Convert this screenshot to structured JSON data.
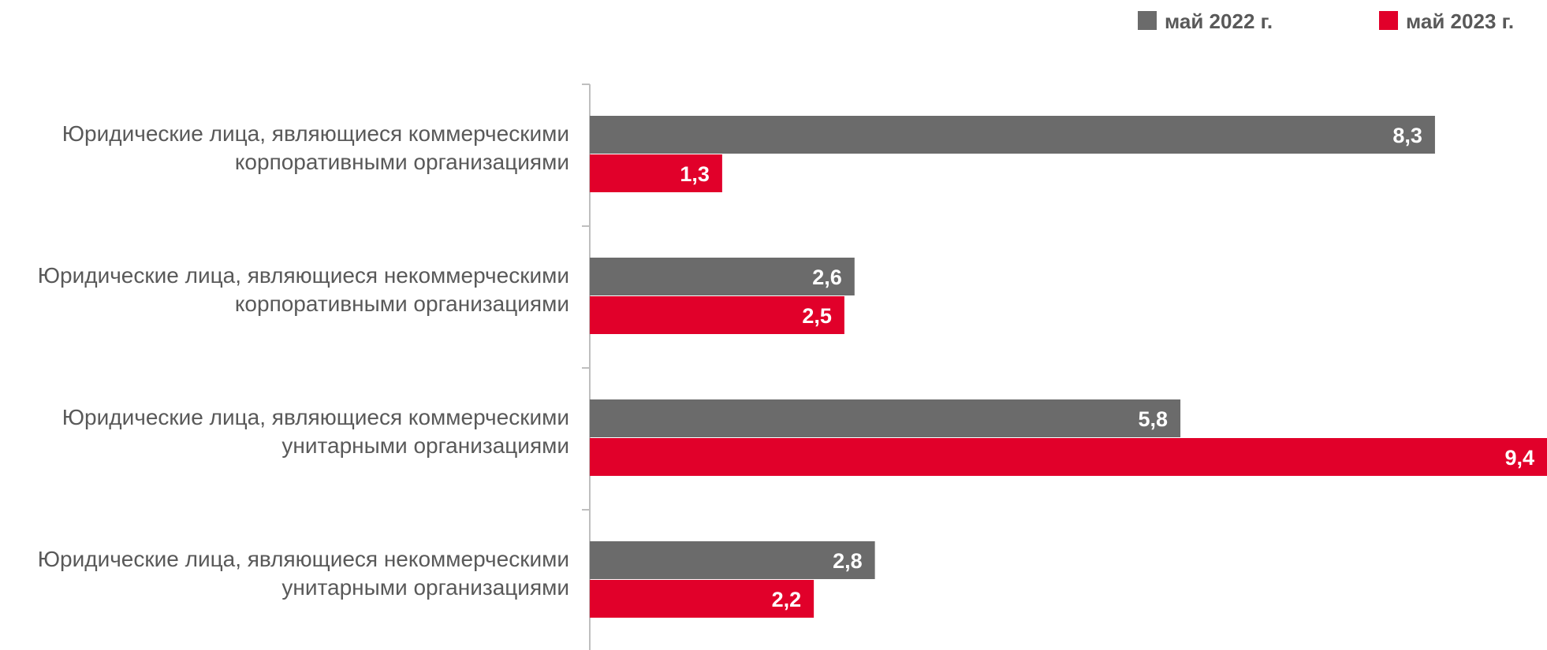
{
  "chart_data": {
    "type": "bar",
    "orientation": "horizontal",
    "categories": [
      [
        "Юридические лица, являющиеся коммерческими",
        "корпоративными организациями"
      ],
      [
        "Юридические лица, являющиеся некоммерческими",
        "корпоративными организациями"
      ],
      [
        "Юридические лица, являющиеся коммерческими",
        "унитарными организациями"
      ],
      [
        "Юридические лица, являющиеся некоммерческими",
        "унитарными организациями"
      ]
    ],
    "series": [
      {
        "name": "май 2022 г.",
        "color": "#6b6b6b",
        "values": [
          8.3,
          2.6,
          5.8,
          2.8
        ],
        "labels": [
          "8,3",
          "2,6",
          "5,8",
          "2,8"
        ]
      },
      {
        "name": "май 2023 г.",
        "color": "#e1002a",
        "values": [
          1.3,
          2.5,
          9.4,
          2.2
        ],
        "labels": [
          "1,3",
          "2,5",
          "9,4",
          "2,2"
        ]
      }
    ],
    "xlim": [
      0,
      9.4
    ],
    "grid": false,
    "legend_position": "top-right",
    "data_labels": "inside-end"
  }
}
